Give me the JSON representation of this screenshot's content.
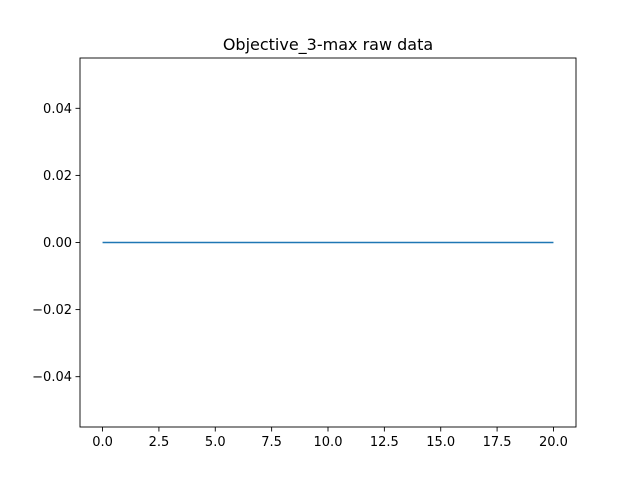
{
  "chart_data": {
    "type": "line",
    "title": "Objective_3-max raw data",
    "xlabel": "",
    "ylabel": "",
    "xlim": [
      -1.0,
      21.0
    ],
    "ylim": [
      -0.055,
      0.055
    ],
    "x_ticks": [
      0.0,
      2.5,
      5.0,
      7.5,
      10.0,
      12.5,
      15.0,
      17.5,
      20.0
    ],
    "x_tick_labels": [
      "0.0",
      "2.5",
      "5.0",
      "7.5",
      "10.0",
      "12.5",
      "15.0",
      "17.5",
      "20.0"
    ],
    "y_ticks": [
      -0.04,
      -0.02,
      0.0,
      0.02,
      0.04
    ],
    "y_tick_labels": [
      "−0.04",
      "−0.02",
      "0.00",
      "0.02",
      "0.04"
    ],
    "grid": false,
    "series": [
      {
        "color": "#1f77b4",
        "x": [
          0,
          1,
          2,
          3,
          4,
          5,
          6,
          7,
          8,
          9,
          10,
          11,
          12,
          13,
          14,
          15,
          16,
          17,
          18,
          19,
          20
        ],
        "y": [
          0,
          0,
          0,
          0,
          0,
          0,
          0,
          0,
          0,
          0,
          0,
          0,
          0,
          0,
          0,
          0,
          0,
          0,
          0,
          0,
          0
        ]
      }
    ]
  }
}
